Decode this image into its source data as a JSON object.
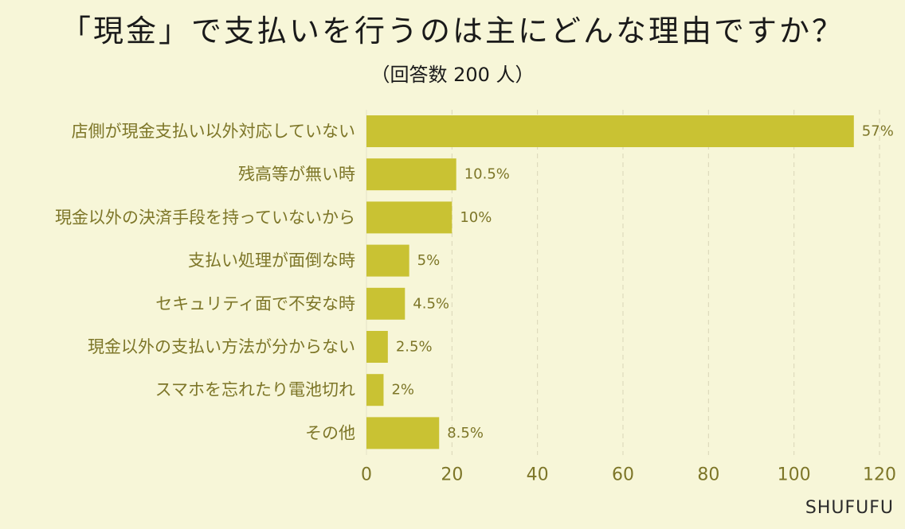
{
  "title": "「現金」で支払いを行うのは主にどんな理由ですか？",
  "subtitle": "（回答数 200 人）",
  "watermark": "SHUFUFU",
  "colors": {
    "background": "#f7f6d8",
    "bar": "#c9c233",
    "label_text": "#7d7628",
    "grid": "#d9d6b8"
  },
  "chart_data": {
    "type": "bar",
    "orientation": "horizontal",
    "categories": [
      "店側が現金支払い以外対応していない",
      "残高等が無い時",
      "現金以外の決済手段を持っていないから",
      "支払い処理が面倒な時",
      "セキュリティ面で不安な時",
      "現金以外の支払い方法が分からない",
      "スマホを忘れたり電池切れ",
      "その他"
    ],
    "values": [
      114,
      21,
      20,
      10,
      9,
      5,
      4,
      17
    ],
    "data_labels": [
      "57%",
      "10.5%",
      "10%",
      "5%",
      "4.5%",
      "2.5%",
      "2%",
      "8.5%"
    ],
    "xlim": [
      0,
      120
    ],
    "xticks": [
      0,
      20,
      40,
      60,
      80,
      100,
      120
    ],
    "grid": true,
    "legend": "none"
  }
}
